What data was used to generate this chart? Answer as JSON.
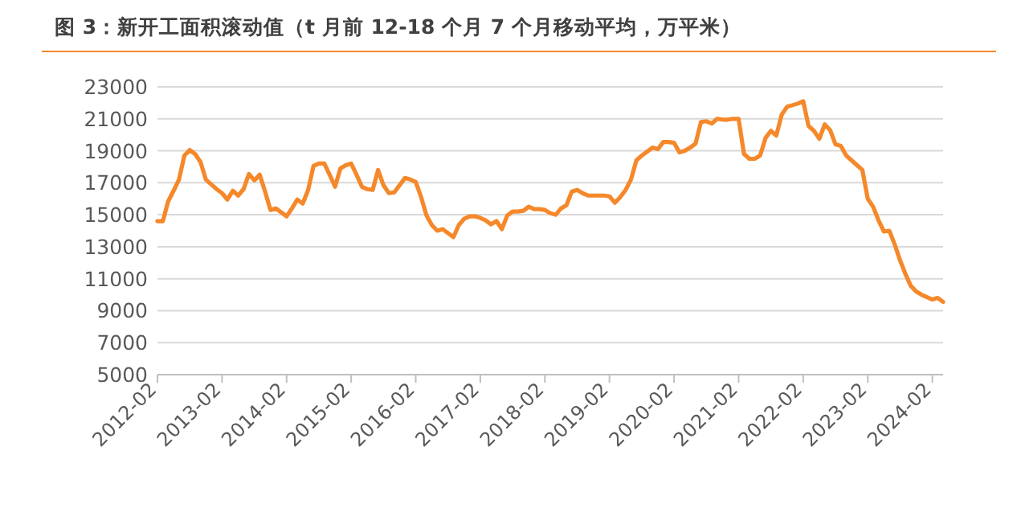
{
  "chart_data": {
    "type": "line",
    "title": "图 3：新开工面积滚动值（t 月前 12-18 个月 7 个月移动平均，万平米）",
    "x": [
      "2012-02",
      "2012-03",
      "2012-04",
      "2012-05",
      "2012-06",
      "2012-07",
      "2012-08",
      "2012-09",
      "2012-10",
      "2012-11",
      "2012-12",
      "2013-01",
      "2013-02",
      "2013-03",
      "2013-04",
      "2013-05",
      "2013-06",
      "2013-07",
      "2013-08",
      "2013-09",
      "2013-10",
      "2013-11",
      "2013-12",
      "2014-01",
      "2014-02",
      "2014-03",
      "2014-04",
      "2014-05",
      "2014-06",
      "2014-07",
      "2014-08",
      "2014-09",
      "2014-10",
      "2014-11",
      "2014-12",
      "2015-01",
      "2015-02",
      "2015-03",
      "2015-04",
      "2015-05",
      "2015-06",
      "2015-07",
      "2015-08",
      "2015-09",
      "2015-10",
      "2015-11",
      "2015-12",
      "2016-01",
      "2016-02",
      "2016-03",
      "2016-04",
      "2016-05",
      "2016-06",
      "2016-07",
      "2016-08",
      "2016-09",
      "2016-10",
      "2016-11",
      "2016-12",
      "2017-01",
      "2017-02",
      "2017-03",
      "2017-04",
      "2017-05",
      "2017-06",
      "2017-07",
      "2017-08",
      "2017-09",
      "2017-10",
      "2017-11",
      "2017-12",
      "2018-01",
      "2018-02",
      "2018-03",
      "2018-04",
      "2018-05",
      "2018-06",
      "2018-07",
      "2018-08",
      "2018-09",
      "2018-10",
      "2018-11",
      "2018-12",
      "2019-01",
      "2019-02",
      "2019-03",
      "2019-04",
      "2019-05",
      "2019-06",
      "2019-07",
      "2019-08",
      "2019-09",
      "2019-10",
      "2019-11",
      "2019-12",
      "2020-01",
      "2020-02",
      "2020-03",
      "2020-04",
      "2020-05",
      "2020-06",
      "2020-07",
      "2020-08",
      "2020-09",
      "2020-10",
      "2020-11",
      "2020-12",
      "2021-01",
      "2021-02",
      "2021-03",
      "2021-04",
      "2021-05",
      "2021-06",
      "2021-07",
      "2021-08",
      "2021-09",
      "2021-10",
      "2021-11",
      "2021-12",
      "2022-01",
      "2022-02",
      "2022-03",
      "2022-04",
      "2022-05",
      "2022-06",
      "2022-07",
      "2022-08",
      "2022-09",
      "2022-10",
      "2022-11",
      "2022-12",
      "2023-01",
      "2023-02",
      "2023-03",
      "2023-04",
      "2023-05",
      "2023-06",
      "2023-07",
      "2023-08",
      "2023-09",
      "2023-10",
      "2023-11",
      "2023-12",
      "2024-01",
      "2024-02",
      "2024-03",
      "2024-04"
    ],
    "series": [
      {
        "color": "#f5882a",
        "values": [
          14600,
          14600,
          15850,
          16500,
          17200,
          18700,
          19050,
          18800,
          18300,
          17200,
          16900,
          16600,
          16350,
          15950,
          16500,
          16200,
          16600,
          17550,
          17150,
          17500,
          16450,
          15300,
          15400,
          15150,
          14900,
          15400,
          15950,
          15700,
          16550,
          18050,
          18200,
          18200,
          17500,
          16750,
          17900,
          18100,
          18200,
          17500,
          16750,
          16600,
          16550,
          17800,
          16850,
          16350,
          16400,
          16850,
          17300,
          17200,
          17050,
          16100,
          14950,
          14350,
          14000,
          14100,
          13850,
          13600,
          14350,
          14750,
          14900,
          14900,
          14800,
          14650,
          14400,
          14600,
          14100,
          14950,
          15200,
          15200,
          15250,
          15500,
          15350,
          15350,
          15300,
          15100,
          15000,
          15400,
          15600,
          16450,
          16550,
          16350,
          16200,
          16200,
          16200,
          16200,
          16150,
          15750,
          16100,
          16550,
          17200,
          18400,
          18700,
          18950,
          19200,
          19100,
          19550,
          19550,
          19500,
          18900,
          19000,
          19200,
          19450,
          20800,
          20850,
          20700,
          21000,
          20950,
          20950,
          21000,
          21000,
          18800,
          18500,
          18500,
          18700,
          19800,
          20250,
          19950,
          21250,
          21750,
          21850,
          21950,
          22100,
          20550,
          20250,
          19750,
          20650,
          20300,
          19400,
          19300,
          18700,
          18400,
          18100,
          17800,
          16000,
          15500,
          14650,
          13950,
          14000,
          13150,
          12150,
          11300,
          10550,
          10200,
          10000,
          9850,
          9700,
          9800,
          9550
        ]
      }
    ],
    "xlim": [
      "2012-02",
      "2024-04"
    ],
    "xticks": [
      "2012-02",
      "2013-02",
      "2014-02",
      "2015-02",
      "2016-02",
      "2017-02",
      "2018-02",
      "2019-02",
      "2020-02",
      "2021-02",
      "2022-02",
      "2023-02",
      "2024-02"
    ],
    "ylim": [
      5000,
      23000
    ],
    "yticks": [
      5000,
      7000,
      9000,
      11000,
      13000,
      15000,
      17000,
      19000,
      21000,
      23000
    ],
    "grid": "y",
    "marker": "none",
    "line_style": "solid"
  }
}
